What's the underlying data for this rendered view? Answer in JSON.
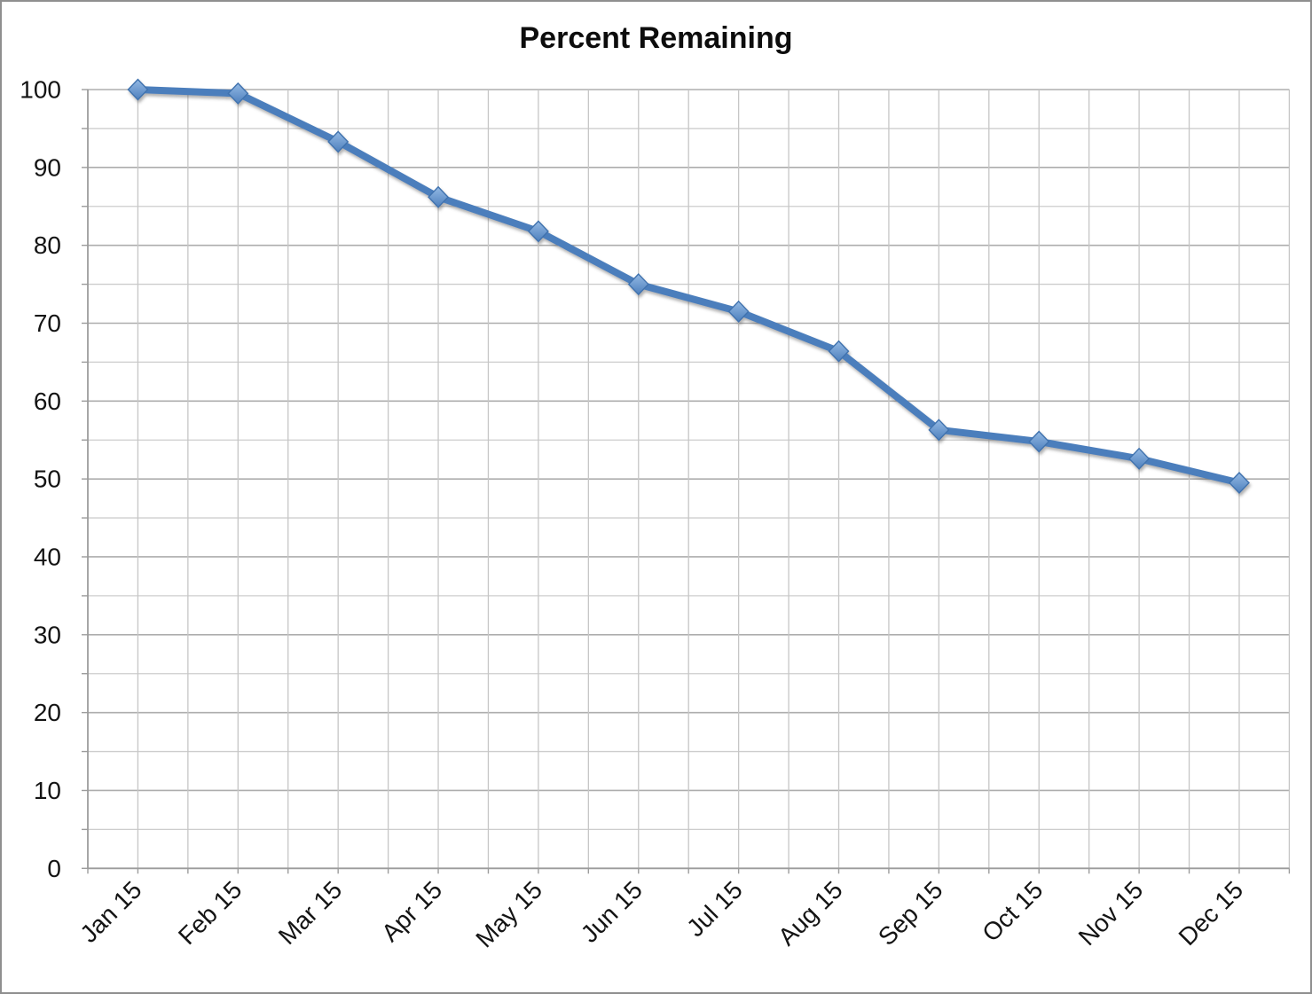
{
  "chart_data": {
    "type": "line",
    "title": "Percent Remaining",
    "categories": [
      "Jan 15",
      "Feb 15",
      "Mar 15",
      "Apr 15",
      "May 15",
      "Jun 15",
      "Jul 15",
      "Aug 15",
      "Sep 15",
      "Oct 15",
      "Nov 15",
      "Dec 15"
    ],
    "values": [
      100,
      99.5,
      93.3,
      86.2,
      81.8,
      75.0,
      71.5,
      66.4,
      56.3,
      54.8,
      52.6,
      49.5
    ],
    "xlabel": "",
    "ylabel": "",
    "ylim": [
      0,
      100
    ],
    "y_tick_step": 10,
    "y_gridline_step": 5,
    "y_tick_labels": [
      "0",
      "10",
      "20",
      "30",
      "40",
      "50",
      "60",
      "70",
      "80",
      "90",
      "100"
    ],
    "x_gridlines_per_category": 2,
    "grid": true,
    "legend": "none",
    "marker": "diamond",
    "colors": {
      "line": "#4B7EBC",
      "marker_fill_top": "#93B9E4",
      "marker_fill_bottom": "#4E80BD",
      "marker_stroke": "#3F72AE",
      "gridline_minor": "#CDCDCD",
      "gridline_major": "#ADADAD",
      "gridline_vertical": "#C6C6C6",
      "axis": "#9C9C9C",
      "frame_border": "#8F8F8F",
      "title_text": "#0D0D0D",
      "label_text": "#141414"
    }
  }
}
